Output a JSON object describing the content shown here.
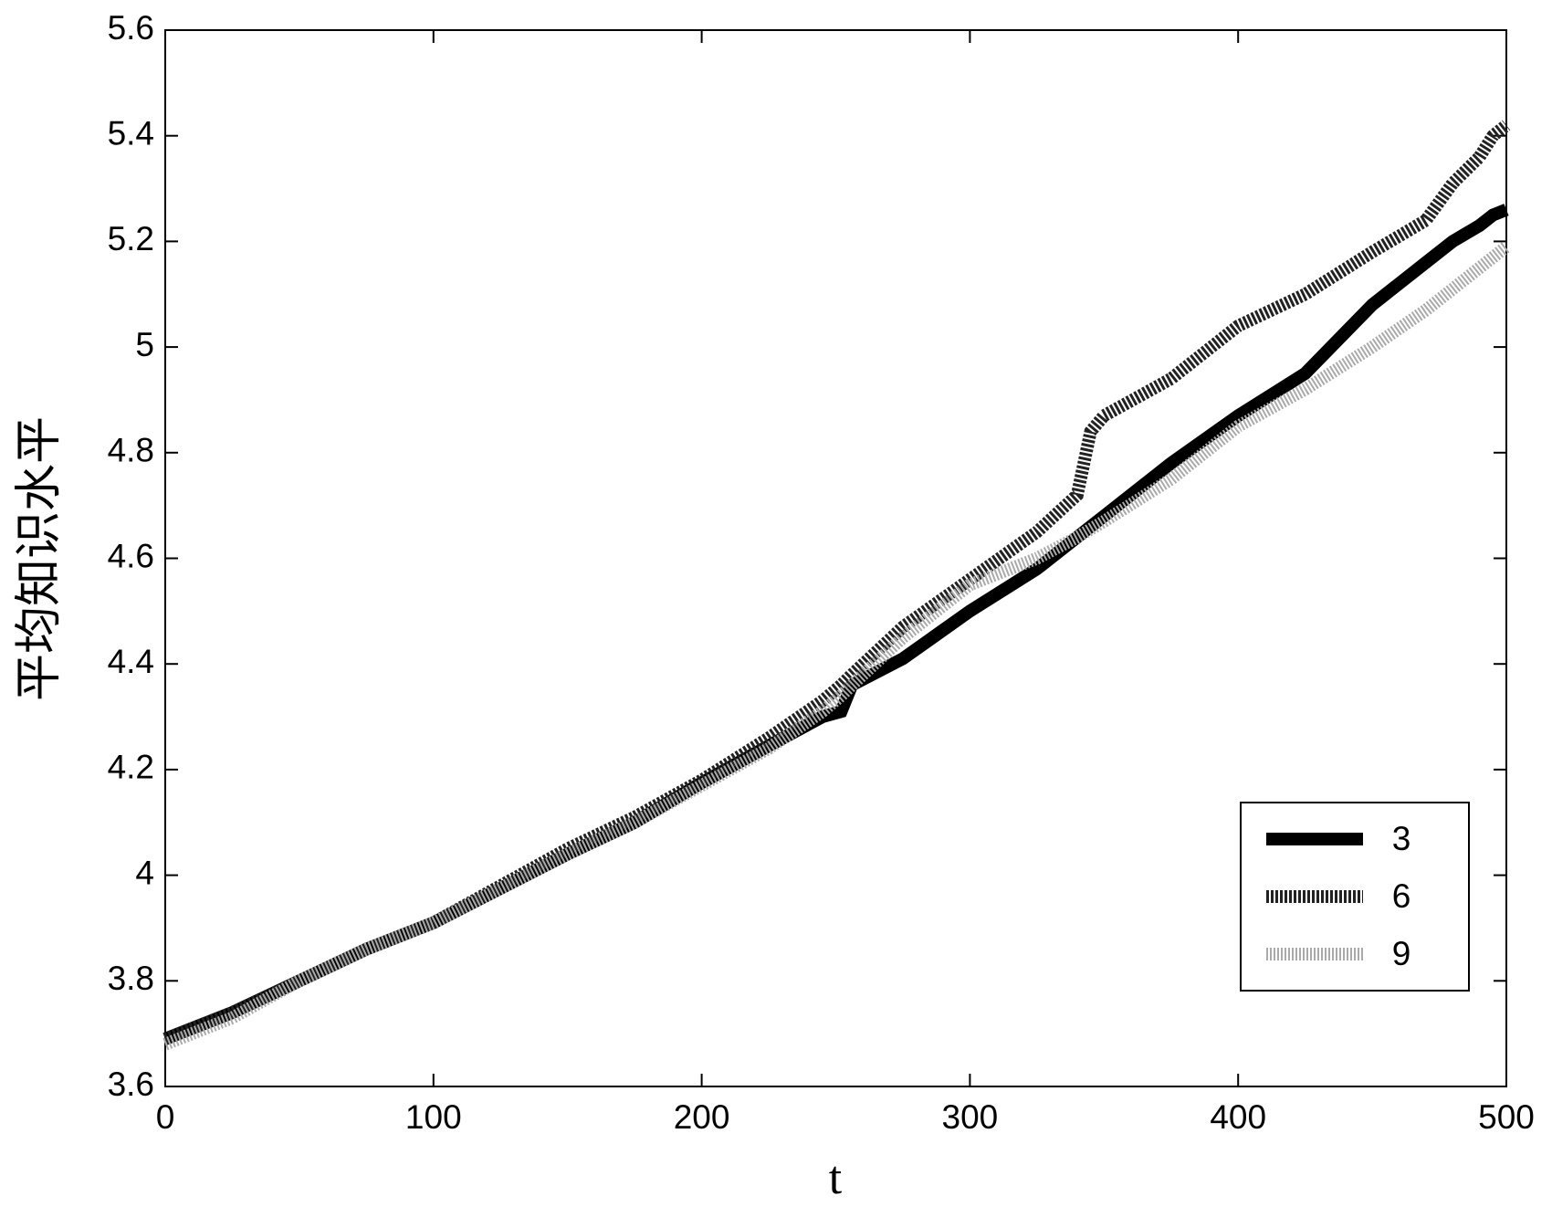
{
  "chart_data": {
    "type": "line",
    "xlabel": "t",
    "ylabel": "平均知识水平",
    "x": [
      0,
      25,
      50,
      75,
      100,
      125,
      150,
      175,
      200,
      225,
      245,
      252,
      256,
      275,
      300,
      325,
      340,
      345,
      350,
      375,
      400,
      425,
      450,
      470,
      480,
      490,
      495,
      500
    ],
    "series": [
      {
        "name": "3",
        "color": "#000000",
        "linestyle": "solid",
        "values": [
          3.69,
          3.74,
          3.8,
          3.86,
          3.91,
          3.975,
          4.04,
          4.1,
          4.175,
          4.245,
          4.3,
          4.31,
          4.36,
          4.41,
          4.5,
          4.58,
          4.64,
          4.66,
          4.68,
          4.78,
          4.87,
          4.95,
          5.08,
          5.16,
          5.2,
          5.23,
          5.25,
          5.26
        ]
      },
      {
        "name": "6",
        "color": "#222222",
        "linestyle": "dashed",
        "values": [
          3.69,
          3.74,
          3.8,
          3.86,
          3.91,
          3.98,
          4.05,
          4.11,
          4.18,
          4.26,
          4.33,
          4.36,
          4.38,
          4.47,
          4.56,
          4.65,
          4.72,
          4.84,
          4.87,
          4.94,
          5.04,
          5.1,
          5.18,
          5.24,
          5.31,
          5.36,
          5.4,
          5.42
        ]
      },
      {
        "name": "9",
        "color": "#aaaaaa",
        "linestyle": "dotted",
        "values": [
          3.68,
          3.73,
          3.8,
          3.86,
          3.91,
          3.975,
          4.04,
          4.1,
          4.17,
          4.24,
          4.31,
          4.34,
          4.36,
          4.45,
          4.55,
          4.6,
          4.64,
          4.655,
          4.67,
          4.75,
          4.85,
          4.92,
          5.0,
          5.07,
          5.11,
          5.15,
          5.17,
          5.19
        ]
      }
    ],
    "xlim": [
      0,
      500
    ],
    "xticks": [
      0,
      100,
      200,
      300,
      400,
      500
    ],
    "ylim": [
      3.6,
      5.6
    ],
    "yticks": [
      3.6,
      3.8,
      4,
      4.2,
      4.4,
      4.6,
      4.8,
      5,
      5.2,
      5.4,
      5.6
    ],
    "legend": "lower right",
    "grid": false
  }
}
